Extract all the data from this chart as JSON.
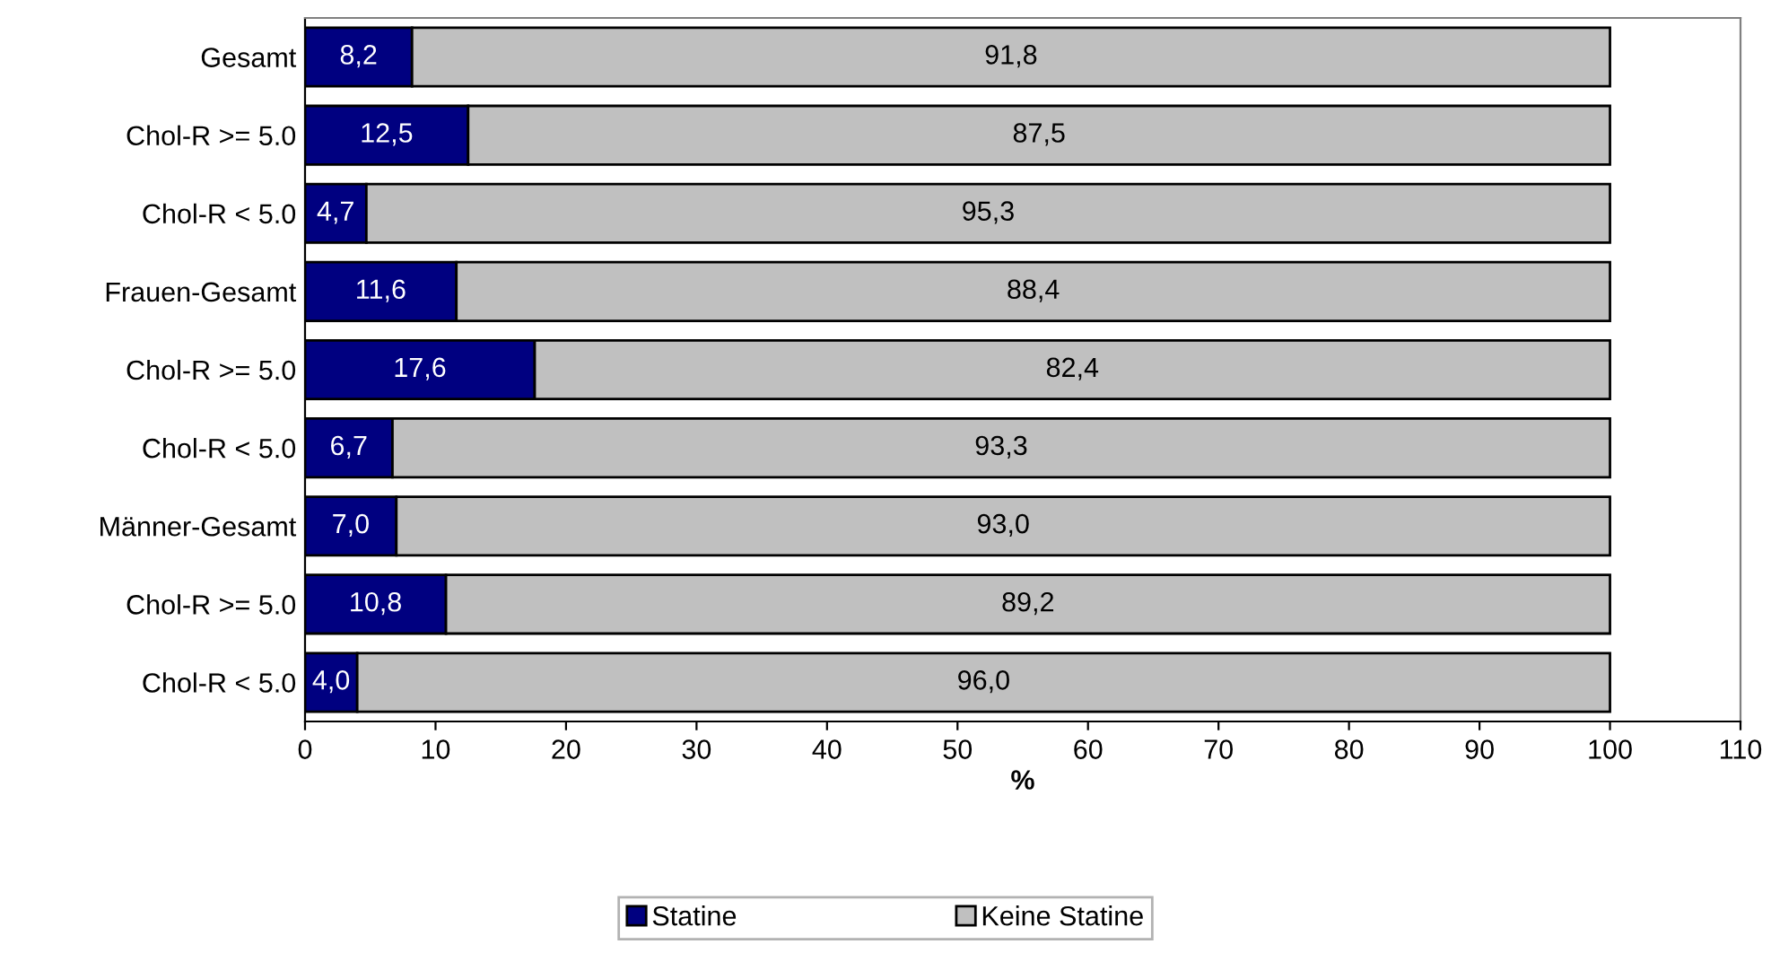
{
  "chart_data": {
    "type": "bar",
    "orientation": "horizontal",
    "stacked": true,
    "categories": [
      "Gesamt",
      "Chol-R >= 5.0",
      "Chol-R < 5.0",
      "Frauen-Gesamt",
      "Chol-R >= 5.0",
      "Chol-R < 5.0",
      "Männer-Gesamt",
      "Chol-R >= 5.0",
      "Chol-R < 5.0"
    ],
    "series": [
      {
        "name": "Statine",
        "color": "#000080",
        "values": [
          8.2,
          12.5,
          4.7,
          11.6,
          17.6,
          6.7,
          7.0,
          10.8,
          4.0
        ],
        "value_labels": [
          "8,2",
          "12,5",
          "4,7",
          "11,6",
          "17,6",
          "6,7",
          "7,0",
          "10,8",
          "4,0"
        ]
      },
      {
        "name": "Keine Statine",
        "color": "#c0c0c0",
        "values": [
          91.8,
          87.5,
          95.3,
          88.4,
          82.4,
          93.3,
          93.0,
          89.2,
          96.0
        ],
        "value_labels": [
          "91,8",
          "87,5",
          "95,3",
          "88,4",
          "82,4",
          "93,3",
          "93,0",
          "89,2",
          "96,0"
        ]
      }
    ],
    "xlabel": "%",
    "xlim": [
      0,
      110
    ],
    "xticks": [
      0,
      10,
      20,
      30,
      40,
      50,
      60,
      70,
      80,
      90,
      100,
      110
    ],
    "grid": false,
    "legend": "bottom"
  }
}
